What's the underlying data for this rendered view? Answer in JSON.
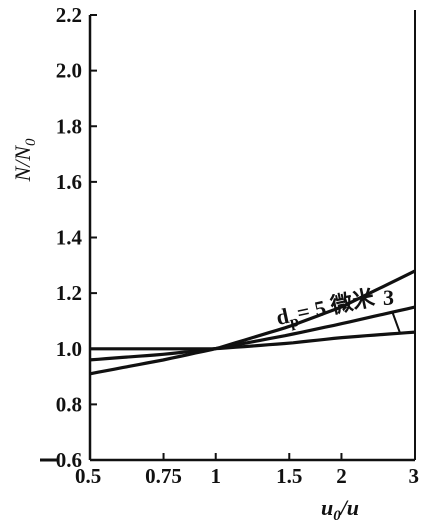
{
  "chart_data": {
    "type": "line",
    "xlabel": "u0/u",
    "ylabel": "N/N0",
    "x_scale": "log",
    "xlim": [
      0.5,
      3
    ],
    "ylim": [
      0.6,
      2.2
    ],
    "x_ticks": [
      "0.5",
      "0.75",
      "1",
      "1.5",
      "2",
      "3"
    ],
    "x_tick_values": [
      0.5,
      0.75,
      1,
      1.5,
      2,
      3
    ],
    "y_ticks": [
      "0.6",
      "0.8",
      "1.0",
      "1.2",
      "1.4",
      "1.6",
      "1.8",
      "2.0",
      "2.2"
    ],
    "y_tick_values": [
      0.6,
      0.8,
      1.0,
      1.2,
      1.4,
      1.6,
      1.8,
      2.0,
      2.2
    ],
    "grid": false,
    "series": [
      {
        "name": "dp= 5 微米",
        "x": [
          0.5,
          0.75,
          1,
          1.5,
          2,
          3
        ],
        "y": [
          0.91,
          0.96,
          1.0,
          1.08,
          1.15,
          1.28
        ]
      },
      {
        "name": "3",
        "x": [
          0.5,
          0.75,
          1,
          1.5,
          2,
          3
        ],
        "y": [
          0.96,
          0.98,
          1.0,
          1.05,
          1.09,
          1.15
        ]
      },
      {
        "name": "",
        "x": [
          0.5,
          0.75,
          1,
          1.5,
          2,
          3
        ],
        "y": [
          1.0,
          1.0,
          1.0,
          1.02,
          1.04,
          1.06
        ]
      }
    ],
    "annotations": {
      "dp_label": "dp= 5 微米",
      "three_label": "3"
    }
  }
}
